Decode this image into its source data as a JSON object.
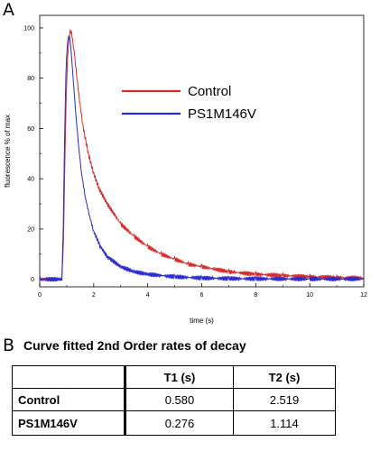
{
  "panel_a_label": "A",
  "panel_b_label": "B",
  "chart_data": {
    "type": "line",
    "xlabel": "time (s)",
    "ylabel": "fluorescence % of max",
    "xlim": [
      0,
      12
    ],
    "ylim": [
      -3,
      105
    ],
    "xticks": [
      0,
      2,
      4,
      6,
      8,
      10,
      12
    ],
    "yticks": [
      0,
      20,
      40,
      60,
      80,
      100
    ],
    "grid": false,
    "legend_position": "top-right",
    "series": [
      {
        "name": "Control",
        "color": "#d42c2c",
        "x": [
          0,
          0.82,
          0.88,
          0.93,
          0.98,
          1.03,
          1.08,
          1.13,
          1.18,
          1.22,
          1.3,
          1.4,
          1.5,
          1.6,
          1.8,
          2.0,
          2.2,
          2.5,
          3.0,
          3.5,
          4.0,
          4.5,
          5.0,
          5.5,
          6.0,
          7.0,
          8.0,
          9.0,
          10.0,
          11.0,
          12.0
        ],
        "y": [
          0,
          0,
          15,
          45,
          72,
          88,
          95,
          99,
          98,
          95,
          88,
          78,
          69,
          61,
          50,
          42,
          36,
          30,
          22,
          17,
          13,
          10,
          8,
          6,
          5,
          3,
          2,
          1.5,
          1,
          0.7,
          0.5
        ]
      },
      {
        "name": "PS1M146V",
        "color": "#2a2ad0",
        "x": [
          0,
          0.82,
          0.87,
          0.92,
          0.97,
          1.02,
          1.07,
          1.12,
          1.17,
          1.25,
          1.35,
          1.45,
          1.55,
          1.7,
          1.85,
          2.0,
          2.25,
          2.5,
          3.0,
          3.5,
          4.0,
          5.0,
          6.0,
          7.0,
          8.0,
          10.0,
          12.0
        ],
        "y": [
          0,
          0,
          20,
          55,
          82,
          93,
          97,
          96,
          90,
          78,
          64,
          52,
          42,
          32,
          25,
          19,
          13,
          9,
          5,
          3,
          2,
          1,
          0.5,
          0.3,
          0.2,
          0.1,
          0.1
        ]
      }
    ]
  },
  "table": {
    "title": "Curve fitted 2nd Order rates of decay",
    "columns": [
      "",
      "T1 (s)",
      "T2 (s)"
    ],
    "rows": [
      {
        "label": "Control",
        "t1": "0.580",
        "t2": "2.519"
      },
      {
        "label": "PS1M146V",
        "t1": "0.276",
        "t2": "1.114"
      }
    ]
  }
}
